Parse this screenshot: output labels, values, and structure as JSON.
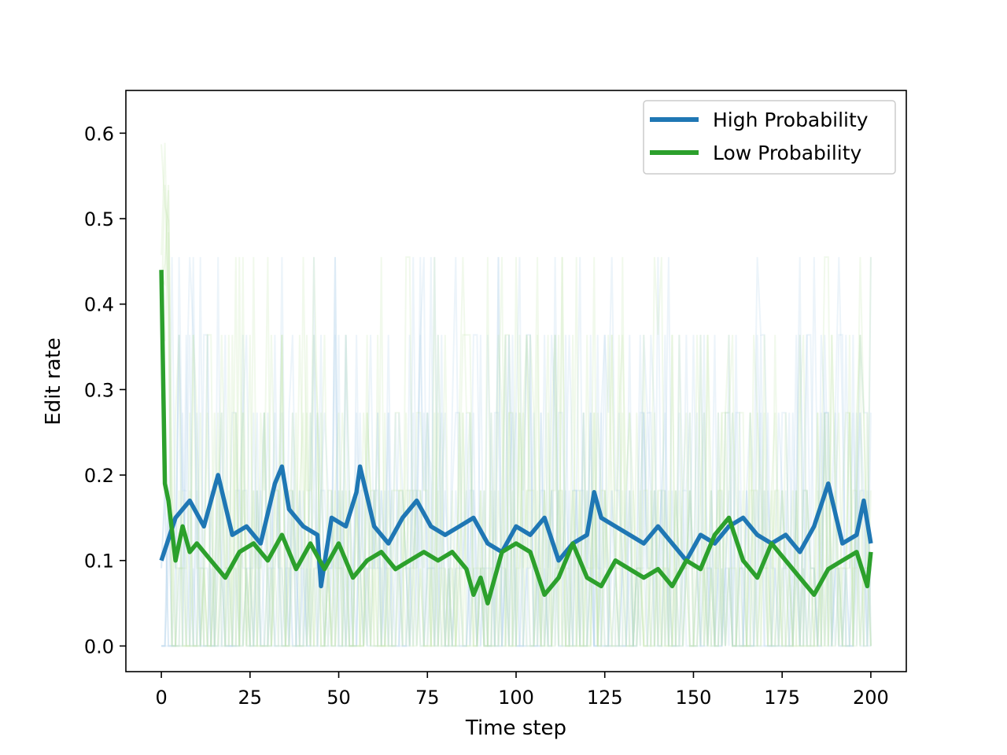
{
  "chart_data": {
    "type": "line",
    "xlabel": "Time step",
    "ylabel": "Edit rate",
    "xlim": [
      -10,
      210
    ],
    "ylim": [
      -0.03,
      0.65
    ],
    "xticks": [
      0,
      25,
      50,
      75,
      100,
      125,
      150,
      175,
      200
    ],
    "xtick_labels": [
      "0",
      "25",
      "50",
      "75",
      "100",
      "125",
      "150",
      "175",
      "200"
    ],
    "yticks": [
      0.0,
      0.1,
      0.2,
      0.3,
      0.4,
      0.5,
      0.6
    ],
    "ytick_labels": [
      "0.0",
      "0.1",
      "0.2",
      "0.3",
      "0.4",
      "0.5",
      "0.6"
    ],
    "grid": false,
    "legend_position": "top-right",
    "series": [
      {
        "name": "High Probability",
        "color": "#1f77b4",
        "faint_color": "#a8cfe8",
        "x": [
          0,
          4,
          8,
          12,
          16,
          20,
          24,
          28,
          32,
          34,
          36,
          40,
          44,
          45,
          48,
          52,
          55,
          56,
          60,
          64,
          68,
          72,
          76,
          80,
          84,
          88,
          92,
          96,
          100,
          104,
          108,
          112,
          116,
          120,
          122,
          124,
          128,
          132,
          136,
          140,
          144,
          148,
          152,
          156,
          160,
          164,
          168,
          172,
          176,
          180,
          184,
          188,
          192,
          196,
          198,
          200
        ],
        "values": [
          0.1,
          0.15,
          0.17,
          0.14,
          0.2,
          0.13,
          0.14,
          0.12,
          0.19,
          0.21,
          0.16,
          0.14,
          0.13,
          0.07,
          0.15,
          0.14,
          0.18,
          0.21,
          0.14,
          0.12,
          0.15,
          0.17,
          0.14,
          0.13,
          0.14,
          0.15,
          0.12,
          0.11,
          0.14,
          0.13,
          0.15,
          0.1,
          0.12,
          0.13,
          0.18,
          0.15,
          0.14,
          0.13,
          0.12,
          0.14,
          0.12,
          0.1,
          0.13,
          0.12,
          0.14,
          0.15,
          0.13,
          0.12,
          0.13,
          0.11,
          0.14,
          0.19,
          0.12,
          0.13,
          0.17,
          0.12
        ]
      },
      {
        "name": "Low Probability",
        "color": "#2ca02c",
        "faint_color": "#bde5a8",
        "x": [
          0,
          1,
          2,
          4,
          6,
          8,
          10,
          14,
          18,
          22,
          26,
          30,
          34,
          38,
          42,
          46,
          50,
          54,
          58,
          62,
          66,
          70,
          74,
          78,
          82,
          86,
          88,
          90,
          92,
          96,
          100,
          104,
          108,
          112,
          116,
          120,
          124,
          128,
          132,
          136,
          140,
          144,
          148,
          152,
          156,
          160,
          164,
          168,
          172,
          176,
          180,
          184,
          188,
          192,
          196,
          199,
          200
        ],
        "values": [
          0.44,
          0.19,
          0.17,
          0.1,
          0.14,
          0.11,
          0.12,
          0.1,
          0.08,
          0.11,
          0.12,
          0.1,
          0.13,
          0.09,
          0.12,
          0.09,
          0.12,
          0.08,
          0.1,
          0.11,
          0.09,
          0.1,
          0.11,
          0.1,
          0.11,
          0.09,
          0.06,
          0.08,
          0.05,
          0.11,
          0.12,
          0.11,
          0.06,
          0.08,
          0.12,
          0.08,
          0.07,
          0.1,
          0.09,
          0.08,
          0.09,
          0.07,
          0.1,
          0.09,
          0.13,
          0.15,
          0.1,
          0.08,
          0.12,
          0.1,
          0.08,
          0.06,
          0.09,
          0.1,
          0.11,
          0.07,
          0.11
        ]
      }
    ]
  }
}
